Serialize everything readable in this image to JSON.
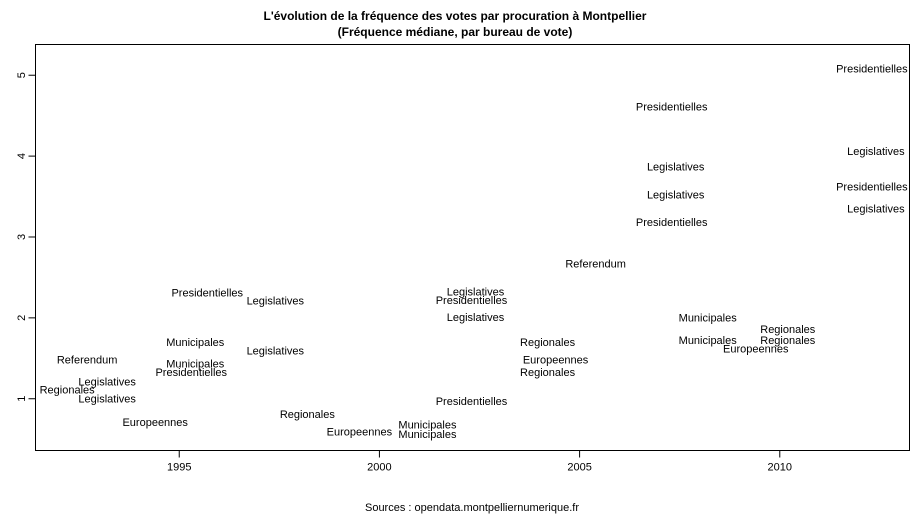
{
  "chart_data": {
    "type": "text-scatter",
    "title": "L'évolution de la fréquence des votes par procuration à Montpellier",
    "subtitle": "(Fréquence médiane, par bureau de vote)",
    "caption": "Sources : opendata.montpelliernumerique.fr",
    "labels": [
      "Presidentielles",
      "Presidentielles",
      "Legislatives",
      "Legislatives",
      "Presidentielles",
      "Legislatives",
      "Legislatives",
      "Presidentielles",
      "Referendum",
      "Presidentielles",
      "Legislatives",
      "Legislatives",
      "Presidentielles",
      "Legislatives",
      "Municipales",
      "Regionales",
      "Municipales",
      "Regionales",
      "Municipales",
      "Regionales",
      "Europeennes",
      "Legislatives",
      "Referendum",
      "Europeennes",
      "Municipales",
      "Presidentielles",
      "Regionales",
      "Legislatives",
      "Regionales",
      "Legislatives",
      "Presidentielles",
      "Regionales",
      "Europeennes",
      "Europeennes",
      "Municipales",
      "Municipales"
    ],
    "x": [
      2012.3,
      2007.3,
      2012.4,
      2007.4,
      2012.3,
      2007.4,
      2012.4,
      2007.3,
      2005.4,
      1995.7,
      1997.4,
      2002.4,
      2002.3,
      2002.4,
      2008.2,
      2010.2,
      1995.4,
      2004.2,
      2008.2,
      2010.2,
      2009.4,
      1997.4,
      1992.7,
      2004.4,
      1995.4,
      1995.3,
      2004.2,
      1993.2,
      1992.2,
      1993.2,
      2002.3,
      1998.2,
      1994.4,
      1999.5,
      2001.2,
      2001.2
    ],
    "values": [
      5.07,
      4.6,
      4.05,
      3.86,
      3.61,
      3.51,
      3.34,
      3.17,
      2.66,
      2.3,
      2.2,
      2.31,
      2.21,
      2.0,
      1.99,
      1.85,
      1.69,
      1.69,
      1.71,
      1.71,
      1.61,
      1.58,
      1.47,
      1.47,
      1.42,
      1.32,
      1.32,
      1.2,
      1.1,
      0.99,
      0.96,
      0.8,
      0.7,
      0.58,
      0.67,
      0.55
    ],
    "color": "#000000",
    "xlim": [
      1991.41,
      2013.24
    ],
    "ylim": [
      0.36,
      5.38
    ],
    "xticks": [
      1995,
      2000,
      2005,
      2010
    ],
    "yticks": [
      1,
      2,
      3,
      4,
      5
    ]
  }
}
